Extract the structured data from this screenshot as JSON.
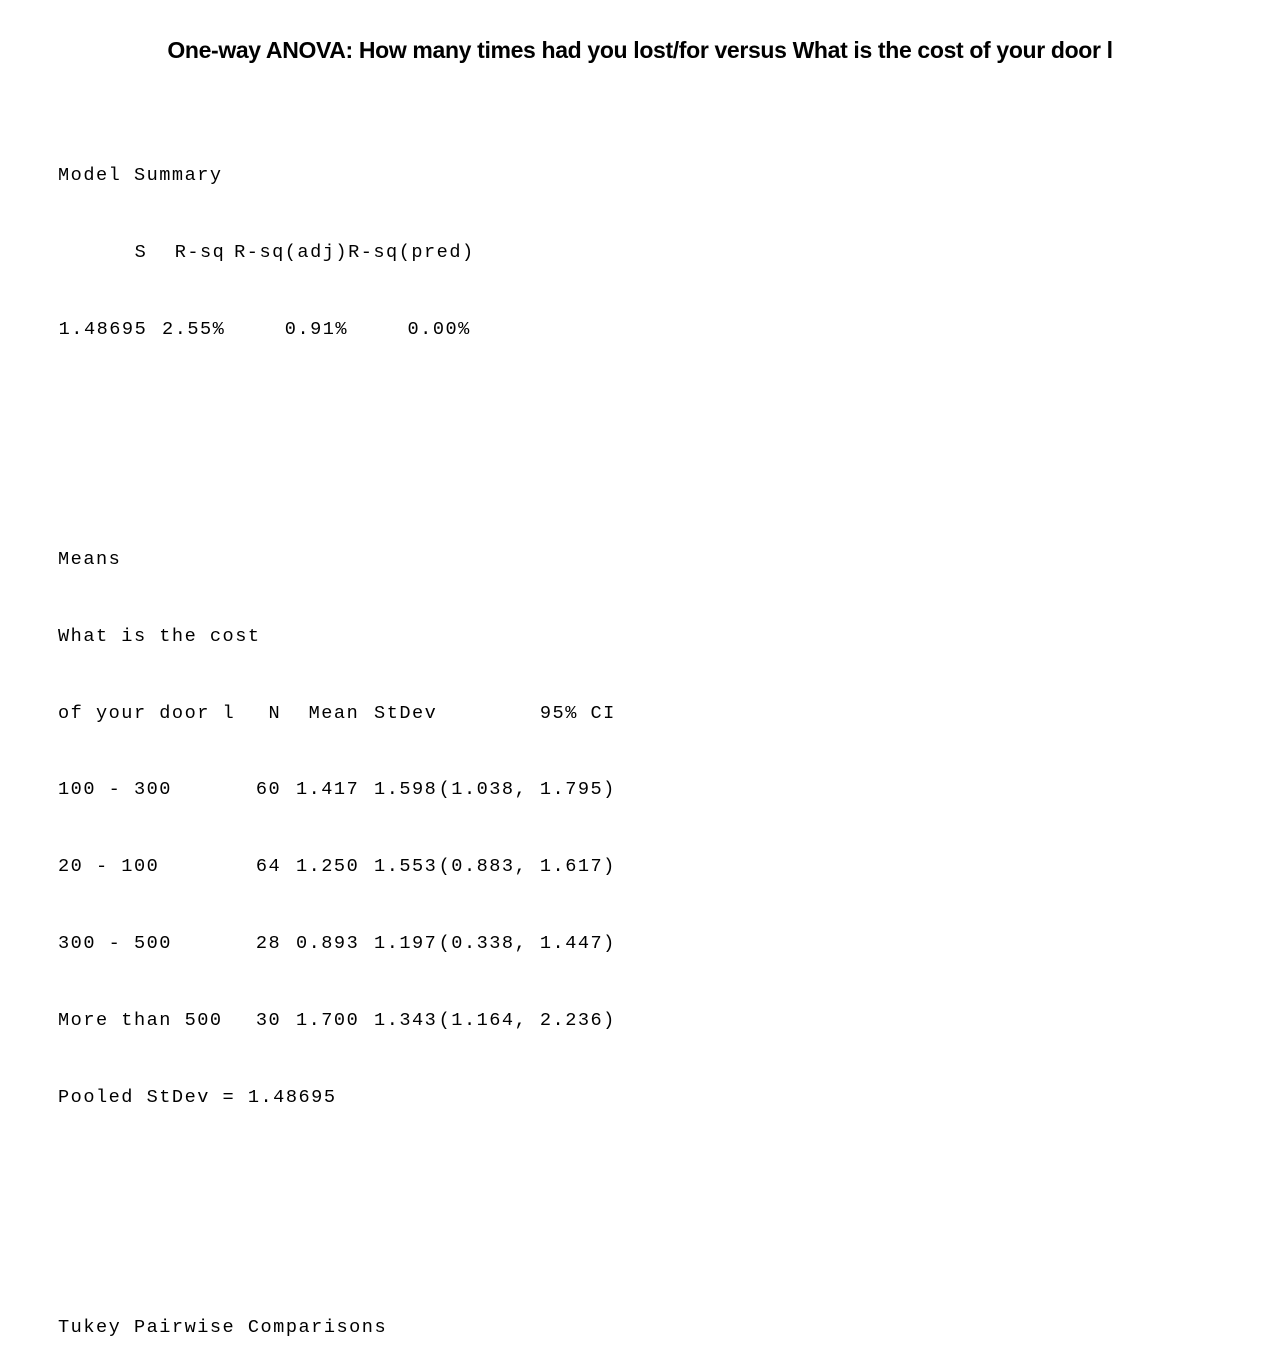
{
  "title": "One-way ANOVA: How many times had you lost/for versus What is the cost of your door l",
  "model_summary": {
    "heading": "Model Summary",
    "headers": [
      "S",
      "R-sq",
      "R-sq(adj)",
      "R-sq(pred)"
    ],
    "values": [
      "1.48695",
      "2.55%",
      "0.91%",
      "0.00%"
    ]
  },
  "means": {
    "heading": "Means",
    "factor_label_line1": "What is the cost",
    "factor_label_line2": "of your door l",
    "headers": [
      "N",
      "Mean",
      "StDev",
      "95% CI"
    ],
    "rows": [
      {
        "level": "100 - 300",
        "n": "60",
        "mean": "1.417",
        "stdev": "1.598",
        "ci": "(1.038, 1.795)"
      },
      {
        "level": "20 - 100",
        "n": "64",
        "mean": "1.250",
        "stdev": "1.553",
        "ci": "(0.883, 1.617)"
      },
      {
        "level": "300 - 500",
        "n": "28",
        "mean": "0.893",
        "stdev": "1.197",
        "ci": "(0.338, 1.447)"
      },
      {
        "level": "More than 500",
        "n": "30",
        "mean": "1.700",
        "stdev": "1.343",
        "ci": "(1.164, 2.236)"
      }
    ],
    "pooled": "Pooled StDev = 1.48695"
  },
  "tukey": {
    "heading": "Tukey Pairwise Comparisons"
  }
}
